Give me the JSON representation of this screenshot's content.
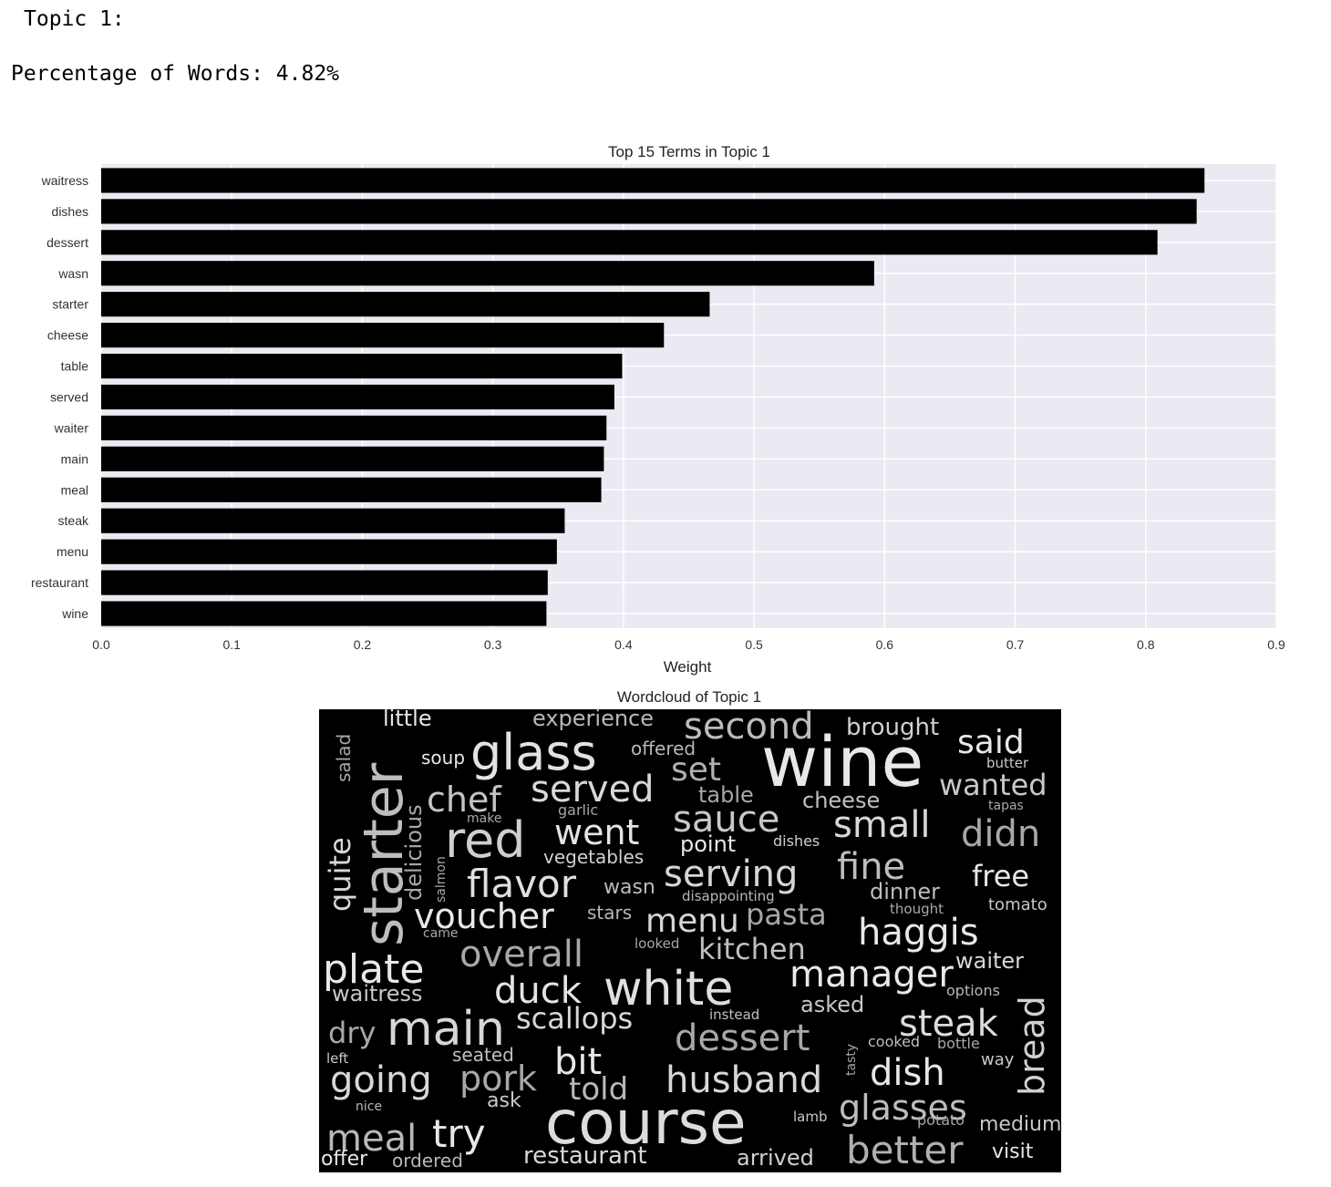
{
  "header": {
    "topic_label": "Topic 1:",
    "percentage_label": "Percentage of Words: 4.82%"
  },
  "chart_data": [
    {
      "type": "bar",
      "orientation": "horizontal",
      "title": "Top 15 Terms in Topic 1",
      "xlabel": "Weight",
      "ylabel": "",
      "xlim": [
        0,
        0.9
      ],
      "xticks": [
        "0.0",
        "0.1",
        "0.2",
        "0.3",
        "0.4",
        "0.5",
        "0.6",
        "0.7",
        "0.8",
        "0.9"
      ],
      "grid": true,
      "bar_color": "#000000",
      "background_color": "#eaeaf2",
      "categories": [
        "waitress",
        "dishes",
        "dessert",
        "wasn",
        "starter",
        "cheese",
        "table",
        "served",
        "waiter",
        "main",
        "meal",
        "steak",
        "menu",
        "restaurant",
        "wine"
      ],
      "values": [
        0.845,
        0.839,
        0.809,
        0.592,
        0.466,
        0.431,
        0.399,
        0.393,
        0.387,
        0.385,
        0.383,
        0.355,
        0.349,
        0.342,
        0.341
      ]
    },
    {
      "type": "wordcloud",
      "title": "Wordcloud of Topic 1",
      "background_color": "#000000",
      "words": [
        {
          "text": "wine",
          "weight": 1.0
        },
        {
          "text": "course",
          "weight": 0.95
        },
        {
          "text": "glass",
          "weight": 0.85
        },
        {
          "text": "starter",
          "weight": 0.85
        },
        {
          "text": "white",
          "weight": 0.8
        },
        {
          "text": "main",
          "weight": 0.8
        },
        {
          "text": "red",
          "weight": 0.78
        },
        {
          "text": "second",
          "weight": 0.58
        },
        {
          "text": "served",
          "weight": 0.58
        },
        {
          "text": "chef",
          "weight": 0.56
        },
        {
          "text": "flavor",
          "weight": 0.58
        },
        {
          "text": "plate",
          "weight": 0.6
        },
        {
          "text": "voucher",
          "weight": 0.56
        },
        {
          "text": "overall",
          "weight": 0.58
        },
        {
          "text": "duck",
          "weight": 0.56
        },
        {
          "text": "manager",
          "weight": 0.56
        },
        {
          "text": "haggis",
          "weight": 0.56
        },
        {
          "text": "steak",
          "weight": 0.56
        },
        {
          "text": "bread",
          "weight": 0.56
        },
        {
          "text": "husband",
          "weight": 0.56
        },
        {
          "text": "dish",
          "weight": 0.56
        },
        {
          "text": "glasses",
          "weight": 0.55
        },
        {
          "text": "better",
          "weight": 0.56
        },
        {
          "text": "going",
          "weight": 0.56
        },
        {
          "text": "meal",
          "weight": 0.56
        },
        {
          "text": "try",
          "weight": 0.56
        },
        {
          "text": "dessert",
          "weight": 0.54
        },
        {
          "text": "serving",
          "weight": 0.52
        },
        {
          "text": "fine",
          "weight": 0.52
        },
        {
          "text": "sauce",
          "weight": 0.52
        },
        {
          "text": "small",
          "weight": 0.52
        },
        {
          "text": "didn",
          "weight": 0.52
        },
        {
          "text": "went",
          "weight": 0.5
        },
        {
          "text": "pork",
          "weight": 0.5
        },
        {
          "text": "bit",
          "weight": 0.5
        },
        {
          "text": "said",
          "weight": 0.5
        },
        {
          "text": "set",
          "weight": 0.5
        },
        {
          "text": "wanted",
          "weight": 0.47
        },
        {
          "text": "quite",
          "weight": 0.47
        },
        {
          "text": "kitchen",
          "weight": 0.47
        },
        {
          "text": "menu",
          "weight": 0.5
        },
        {
          "text": "pasta",
          "weight": 0.47
        },
        {
          "text": "scallops",
          "weight": 0.47
        },
        {
          "text": "told",
          "weight": 0.47
        },
        {
          "text": "dry",
          "weight": 0.45
        },
        {
          "text": "free",
          "weight": 0.44
        },
        {
          "text": "brought",
          "weight": 0.4
        },
        {
          "text": "experience",
          "weight": 0.38
        },
        {
          "text": "little",
          "weight": 0.38
        },
        {
          "text": "restaurant",
          "weight": 0.4
        },
        {
          "text": "arrived",
          "weight": 0.38
        },
        {
          "text": "waiter",
          "weight": 0.38
        },
        {
          "text": "waitress",
          "weight": 0.37
        },
        {
          "text": "cheese",
          "weight": 0.36
        },
        {
          "text": "table",
          "weight": 0.36
        },
        {
          "text": "dinner",
          "weight": 0.36
        },
        {
          "text": "point",
          "weight": 0.36
        },
        {
          "text": "vegetables",
          "weight": 0.33
        },
        {
          "text": "delicious",
          "weight": 0.33
        },
        {
          "text": "wasn",
          "weight": 0.33
        },
        {
          "text": "asked",
          "weight": 0.35
        },
        {
          "text": "offered",
          "weight": 0.33
        },
        {
          "text": "soup",
          "weight": 0.32
        },
        {
          "text": "salad",
          "weight": 0.3
        },
        {
          "text": "visit",
          "weight": 0.33
        },
        {
          "text": "medium",
          "weight": 0.32
        },
        {
          "text": "offer",
          "weight": 0.32
        },
        {
          "text": "ordered",
          "weight": 0.32
        },
        {
          "text": "ask",
          "weight": 0.32
        },
        {
          "text": "seated",
          "weight": 0.3
        },
        {
          "text": "stars",
          "weight": 0.28
        },
        {
          "text": "tomato",
          "weight": 0.28
        },
        {
          "text": "way",
          "weight": 0.28
        },
        {
          "text": "options",
          "weight": 0.25
        },
        {
          "text": "butter",
          "weight": 0.25
        },
        {
          "text": "tapas",
          "weight": 0.22
        },
        {
          "text": "garlic",
          "weight": 0.24
        },
        {
          "text": "make",
          "weight": 0.22
        },
        {
          "text": "dishes",
          "weight": 0.24
        },
        {
          "text": "disappointing",
          "weight": 0.23
        },
        {
          "text": "thought",
          "weight": 0.23
        },
        {
          "text": "looked",
          "weight": 0.23
        },
        {
          "text": "came",
          "weight": 0.2
        },
        {
          "text": "salmon",
          "weight": 0.2
        },
        {
          "text": "instead",
          "weight": 0.22
        },
        {
          "text": "cooked",
          "weight": 0.23
        },
        {
          "text": "bottle",
          "weight": 0.23
        },
        {
          "text": "tasty",
          "weight": 0.22
        },
        {
          "text": "left",
          "weight": 0.22
        },
        {
          "text": "nice",
          "weight": 0.2
        },
        {
          "text": "lamb",
          "weight": 0.22
        },
        {
          "text": "potato",
          "weight": 0.23
        }
      ]
    }
  ]
}
